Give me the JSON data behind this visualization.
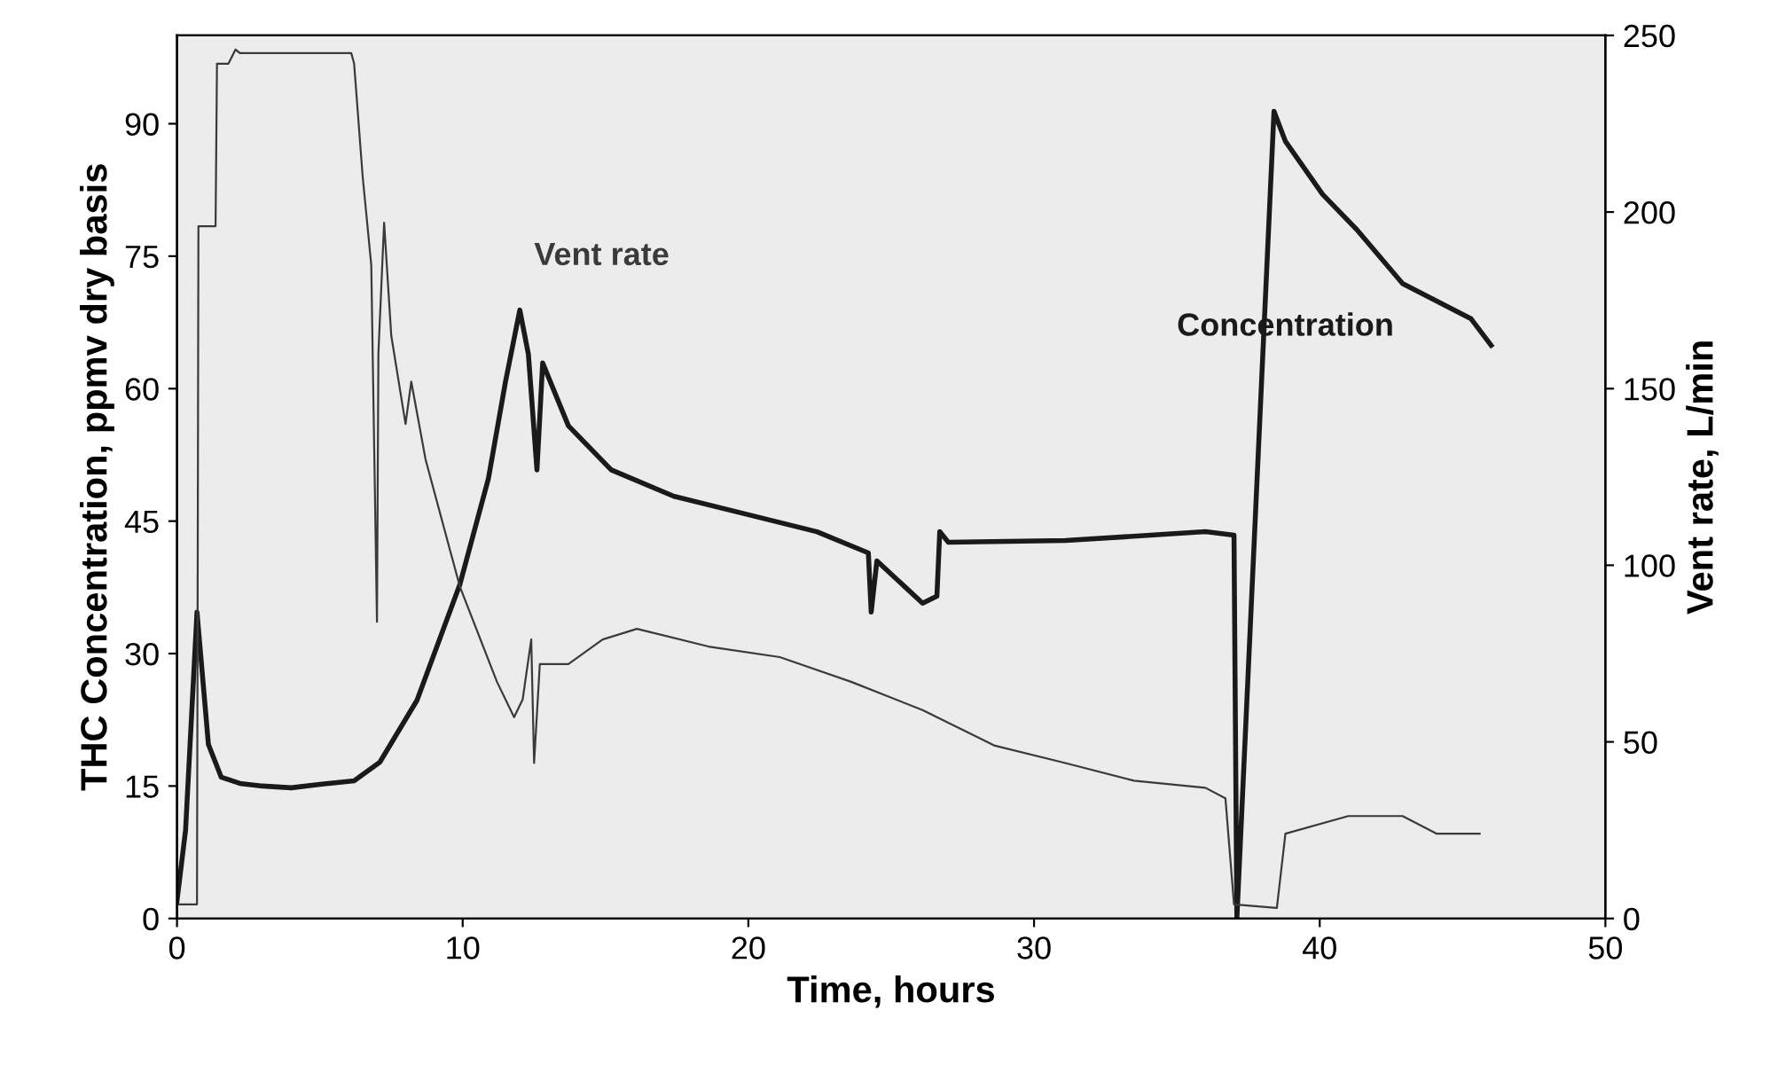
{
  "chart_data": {
    "type": "line",
    "xlabel": "Time, hours",
    "ylabel": "THC Concentration, ppmv dry basis",
    "y2label": "Vent rate, L/min",
    "xlim": [
      0,
      50
    ],
    "xticks": [
      0,
      10,
      20,
      30,
      40,
      50
    ],
    "ylim": [
      0,
      100
    ],
    "yticks": [
      0,
      15,
      30,
      45,
      60,
      75,
      90
    ],
    "y2lim": [
      0,
      250
    ],
    "y2ticks": [
      0,
      50,
      100,
      150,
      200,
      250
    ],
    "grid": false,
    "legend": false,
    "marker": "none",
    "line_style": "solid",
    "series": [
      {
        "name": "Concentration",
        "color": "#1a1a1a",
        "x": [
          0,
          0.3,
          0.7,
          1.1,
          1.55,
          2.2,
          3,
          4,
          5,
          6.2,
          7.1,
          8.4,
          9.9,
          10.9,
          11.5,
          12.0,
          12.3,
          12.6,
          12.8,
          13.7,
          15.2,
          17.4,
          19.9,
          22.4,
          24.2,
          24.3,
          24.5,
          26.1,
          26.6,
          26.7,
          27.0,
          31.1,
          36.0,
          37.0,
          37.1,
          38.4,
          38.8,
          40.1,
          41.3,
          42.9,
          45.3,
          46.0
        ],
        "values": [
          2,
          10,
          34.7,
          19.7,
          16,
          15.3,
          15,
          14.8,
          15.2,
          15.6,
          17.7,
          24.7,
          37.8,
          49.8,
          60.8,
          68.9,
          63.9,
          50.8,
          62.9,
          55.8,
          50.8,
          47.8,
          45.8,
          43.8,
          41.4,
          34.7,
          40.5,
          35.7,
          36.5,
          43.8,
          42.6,
          42.8,
          43.8,
          43.4,
          0,
          91.4,
          88,
          82,
          78,
          71.9,
          67.9,
          64.9
        ]
      },
      {
        "name": "Vent rate",
        "color": "#3a3a3a",
        "axis": "y2",
        "x": [
          0,
          0.7,
          0.75,
          1.35,
          1.4,
          1.8,
          2.05,
          2.2,
          6.1,
          6.2,
          6.5,
          6.8,
          7.0,
          7.05,
          7.25,
          7.5,
          8.0,
          8.2,
          8.7,
          9.9,
          11.2,
          11.8,
          12.1,
          12.4,
          12.5,
          12.7,
          13.7,
          14.9,
          16.1,
          18.6,
          21.1,
          23.6,
          26.1,
          28.6,
          31.1,
          33.5,
          36.0,
          36.7,
          37.0,
          38.5,
          38.8,
          41.0,
          42.9,
          44.1,
          45.6
        ],
        "values": [
          4,
          4,
          196,
          196,
          242,
          242,
          246,
          245,
          245,
          242,
          210,
          185,
          84,
          160,
          197,
          165,
          140,
          152,
          130,
          94,
          67,
          57,
          62,
          79,
          44,
          72,
          72,
          79,
          82,
          77,
          74,
          67,
          59,
          49,
          44,
          39,
          37,
          34,
          4,
          3,
          24,
          29,
          29,
          24,
          24
        ]
      }
    ]
  }
}
